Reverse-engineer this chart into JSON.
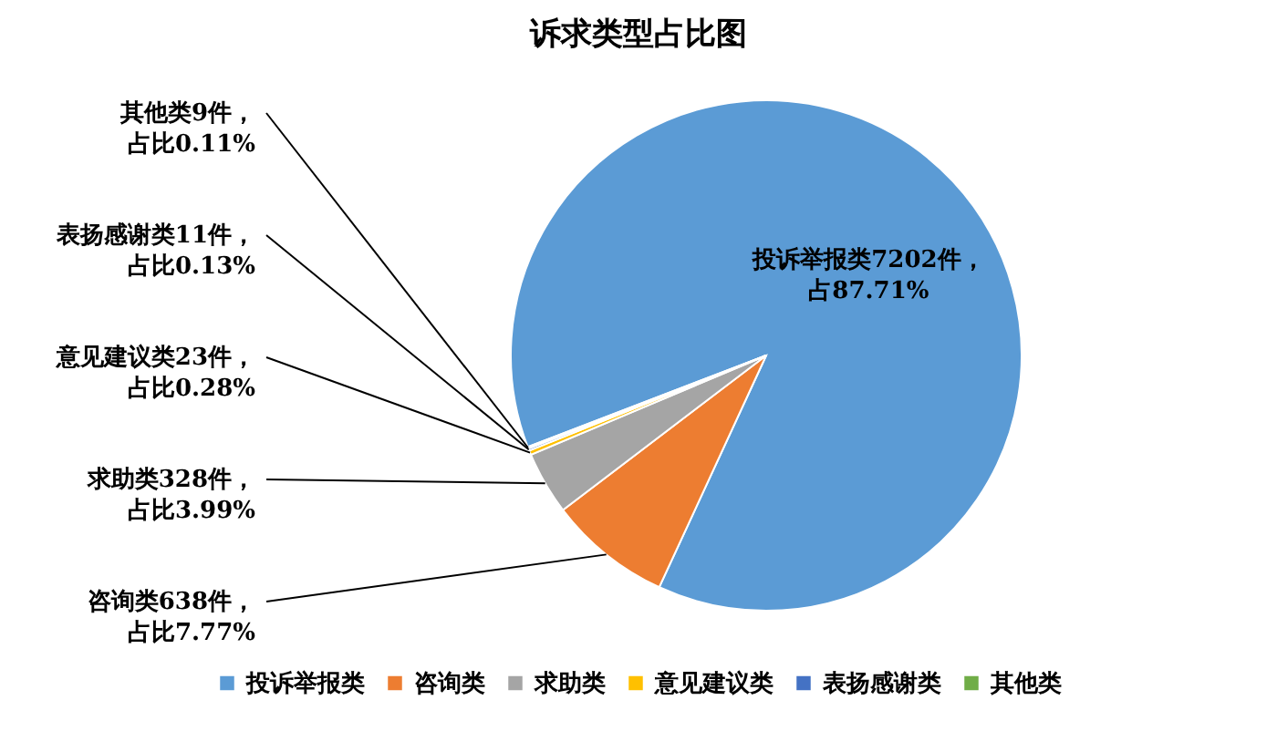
{
  "chart_data": {
    "type": "pie",
    "title": "诉求类型占比图",
    "categories": [
      "投诉举报类",
      "咨询类",
      "求助类",
      "意见建议类",
      "表扬感谢类",
      "其他类"
    ],
    "values": [
      7202,
      638,
      328,
      23,
      11,
      9
    ],
    "colors": [
      "#5b9bd5",
      "#ed7d31",
      "#a5a5a5",
      "#ffc000",
      "#4472c4",
      "#70ad47"
    ],
    "value_labels": [
      "投诉举报类7202件，占87.71%",
      "咨询类638件，占比7.77%",
      "求助类328件，占比3.99%",
      "意见建议类23件，占比0.28%",
      "表扬感谢类11件，占比0.13%",
      "其他类9件，占比0.11%"
    ],
    "legend": "bottom"
  }
}
